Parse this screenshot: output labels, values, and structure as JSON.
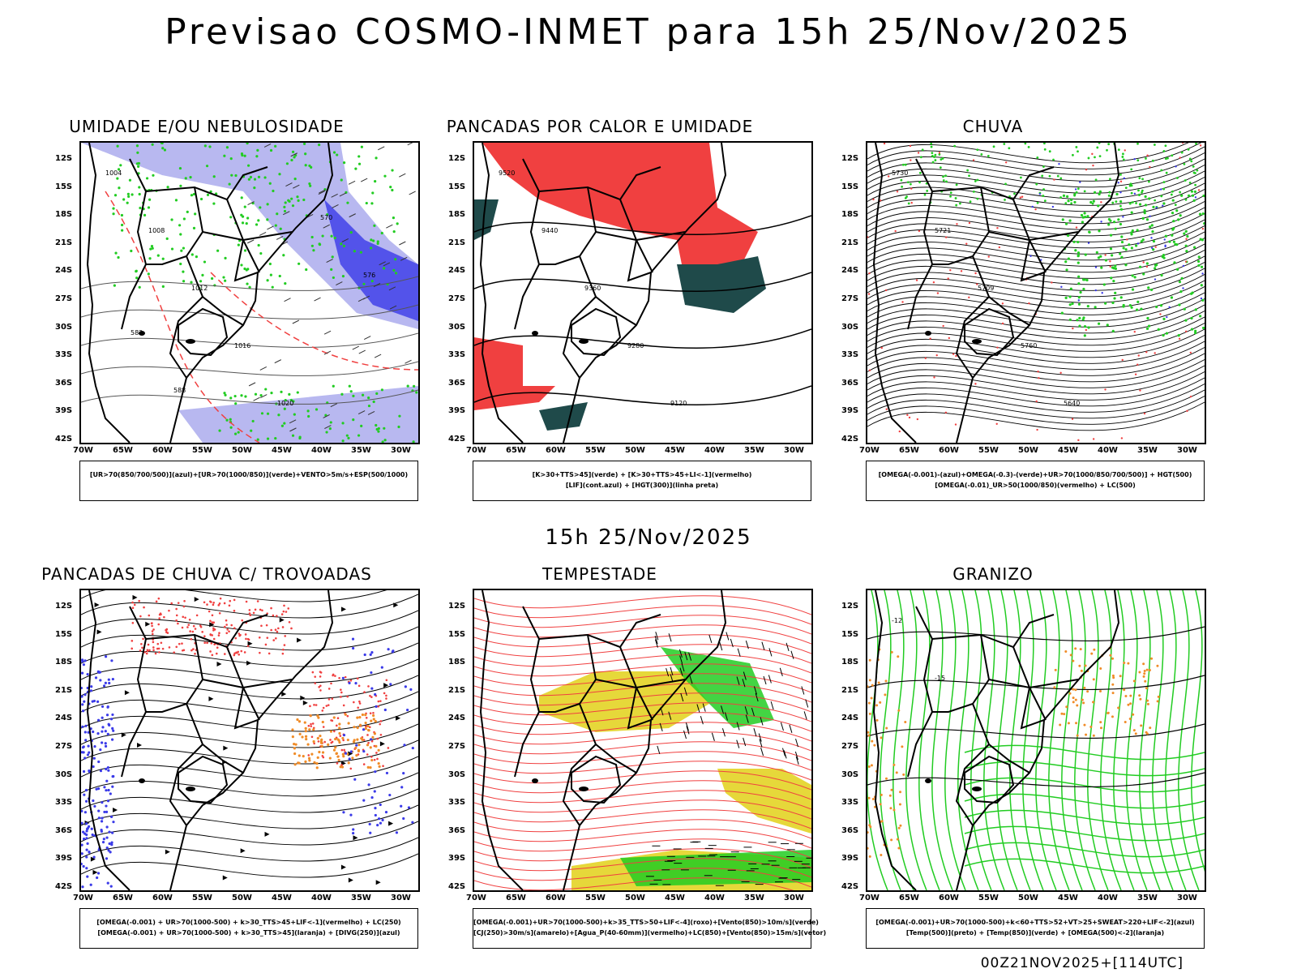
{
  "title": "Previsao COSMO-INMET  para 15h 25/Nov/2025",
  "subtitle": "15h 25/Nov/2025",
  "footer": "00Z21NOV2025+[114UTC]",
  "lat_labels": [
    "12S",
    "15S",
    "18S",
    "21S",
    "24S",
    "27S",
    "30S",
    "33S",
    "36S",
    "39S",
    "42S"
  ],
  "lon_labels": [
    "70W",
    "65W",
    "60W",
    "55W",
    "50W",
    "45W",
    "40W",
    "35W",
    "30W"
  ],
  "panels": [
    {
      "id": "umidade",
      "title": "UMIDADE E/OU NEBULOSIDADE",
      "legend": [
        "[UR>70(850/700/500)](azul)+[UR>70(1000/850)](verde)+VENTO>5m/s+ESP(500/1000)"
      ]
    },
    {
      "id": "pancadas-calor",
      "title": "PANCADAS POR CALOR E UMIDADE",
      "legend": [
        "[K>30+TTS>45](verde)  +  [K>30+TTS>45+LI<-1](vermelho)",
        "[LIF](cont.azul)  +  [HGT(300)](linha preta)"
      ]
    },
    {
      "id": "chuva",
      "title": "CHUVA",
      "legend": [
        "[OMEGA(-0.001)-(azul)+OMEGA(-0.3)-(verde)+UR>70(1000/850/700/500)]  +  HGT(500)",
        "[OMEGA(-0.01)_UR>50(1000/850)(vermelho)  +  LC(500)"
      ]
    },
    {
      "id": "trovoadas",
      "title": "PANCADAS DE CHUVA C/ TROVOADAS",
      "legend": [
        "[OMEGA(-0.001)  +  UR>70(1000-500)  +  k>30_TTS>45+LIF<-1](vermelho)  +  LC(250)",
        "[OMEGA(-0.001)  +  UR>70(1000-500)  +  k>30_TTS>45](laranja)  +  [DIVG(250)](azul)"
      ]
    },
    {
      "id": "tempestade",
      "title": "TEMPESTADE",
      "legend": [
        "[OMEGA(-0.001)+UR>70(1000-500)+k>35_TTS>50+LIF<-4](roxo)+[Vento(850)>10m/s](verde)",
        "[CJ(250)>30m/s](amarelo)+[Agua_P(40-60mm)](vermelho)+LC(850)+[Vento(850)>15m/s](vetor)"
      ]
    },
    {
      "id": "granizo",
      "title": "GRANIZO",
      "legend": [
        "[OMEGA(-0.001)+UR>70(1000-500)+k<60+TTS>52+VT>25+SWEAT>220+LIF<-2](azul)",
        "[Temp(500)](preto)  +  [Temp(850)](verde)  +  [OMEGA(500)<-2](laranja)"
      ]
    }
  ],
  "contour_labels": {
    "umidade": [
      "1004",
      "1008",
      "1012",
      "1016",
      "1020",
      "570",
      "576",
      "582",
      "588"
    ],
    "pancadas-calor": [
      "9520",
      "9440",
      "9360",
      "9280",
      "9120"
    ],
    "chuva": [
      "5730",
      "5721",
      "5709",
      "5760",
      "5640"
    ],
    "granizo": [
      "-12",
      "-15"
    ]
  },
  "colors": {
    "blue": "#3a3ae8",
    "lightblue": "#b8b8f0",
    "green": "#22cc22",
    "red": "#f04040",
    "darkteal": "#1f4a4a",
    "yellow": "#e6d83a",
    "orange": "#f08c28",
    "black": "#000000"
  }
}
